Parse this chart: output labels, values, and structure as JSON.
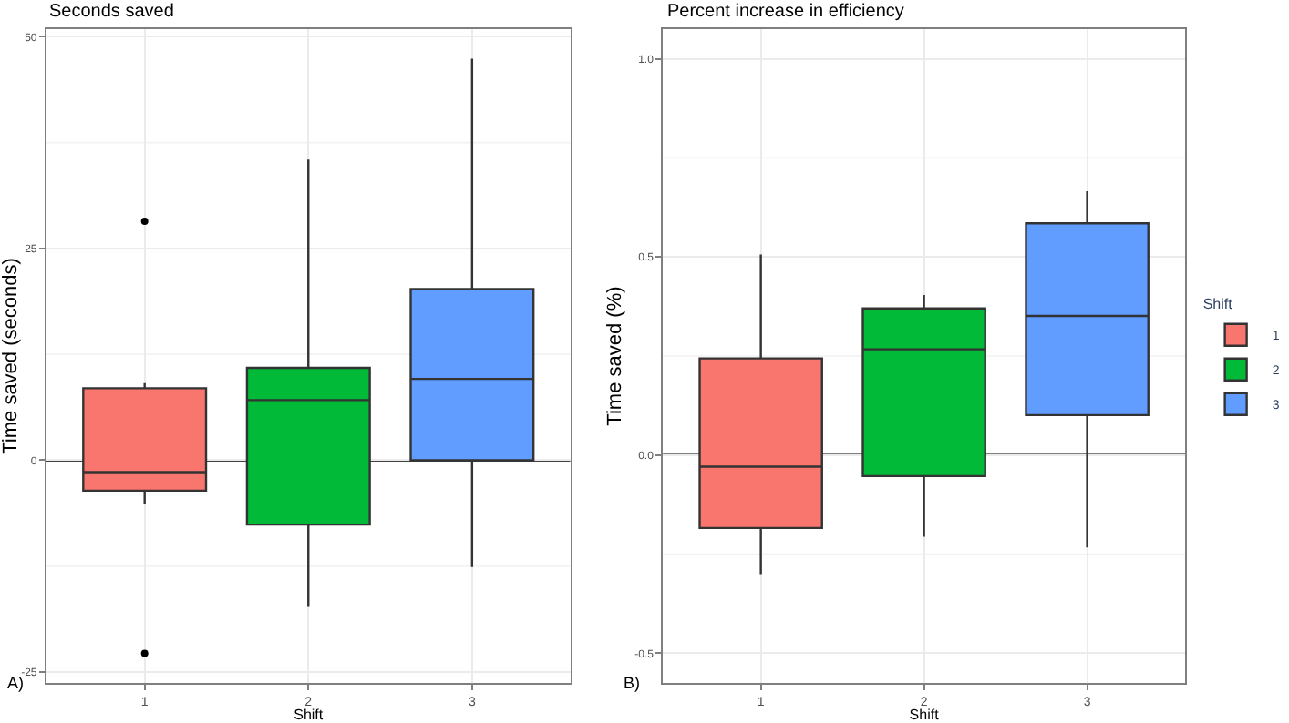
{
  "chart_data": [
    {
      "type": "box",
      "title": "Seconds saved",
      "xlabel": "Shift",
      "ylabel": "Time saved (seconds)",
      "categories": [
        "1",
        "2",
        "3"
      ],
      "colors": [
        "#f8766d",
        "#00ba38",
        "#619cff"
      ],
      "boxes": [
        {
          "low": -5.1,
          "q1": -3.6,
          "median": -1.4,
          "q3": 8.5,
          "high": 9.1,
          "outliers": [
            28.2,
            -22.8
          ]
        },
        {
          "low": -17.3,
          "q1": -7.6,
          "median": 7.1,
          "q3": 10.9,
          "high": 35.5
        },
        {
          "low": -12.6,
          "q1": 0,
          "median": 9.6,
          "q3": 20.2,
          "high": 47.4
        }
      ],
      "ylim": [
        -26.3,
        50.9
      ],
      "yticks": [
        -25,
        0,
        25,
        50
      ],
      "grid": true,
      "ref_lines": [
        {
          "axis": "y",
          "value": 0,
          "color": "#000000"
        }
      ],
      "annotations": [
        "A)"
      ]
    },
    {
      "type": "box",
      "title": "Percent increase in efficiency",
      "xlabel": "Shift",
      "ylabel": "Time saved (%)",
      "categories": [
        "1",
        "2",
        "3"
      ],
      "series": [
        {
          "name": "1",
          "color": "#f8766d",
          "boxes": [
            {
              "low": -0.3,
              "q1": -0.184,
              "median": -0.029,
              "q3": 0.244,
              "high": 0.506
            },
            null,
            null
          ]
        },
        {
          "name": "2",
          "color": "#00ba38",
          "boxes": [
            null,
            {
              "low": -0.206,
              "q1": -0.053,
              "median": 0.267,
              "q3": 0.37,
              "high": 0.404
            },
            null
          ]
        },
        {
          "name": "3",
          "color": "#619cff",
          "boxes": [
            null,
            null,
            {
              "low": -0.233,
              "q1": 0.101,
              "median": 0.351,
              "q3": 0.585,
              "high": 0.666
            }
          ]
        }
      ],
      "ylim": [
        -0.575,
        1.075
      ],
      "yticks": [
        {
          "value": -0.5,
          "label": "-0.5"
        },
        {
          "value": 0,
          "label": "0.0"
        },
        {
          "value": 0.5,
          "label": "0.5"
        },
        {
          "value": 1,
          "label": "1.0"
        }
      ],
      "grid": true,
      "ref_lines": [
        {
          "axis": "y",
          "value": 0,
          "color": "#000000"
        }
      ],
      "legend": "right",
      "legend_title": "Shift",
      "annotations": [
        "B)"
      ]
    }
  ]
}
